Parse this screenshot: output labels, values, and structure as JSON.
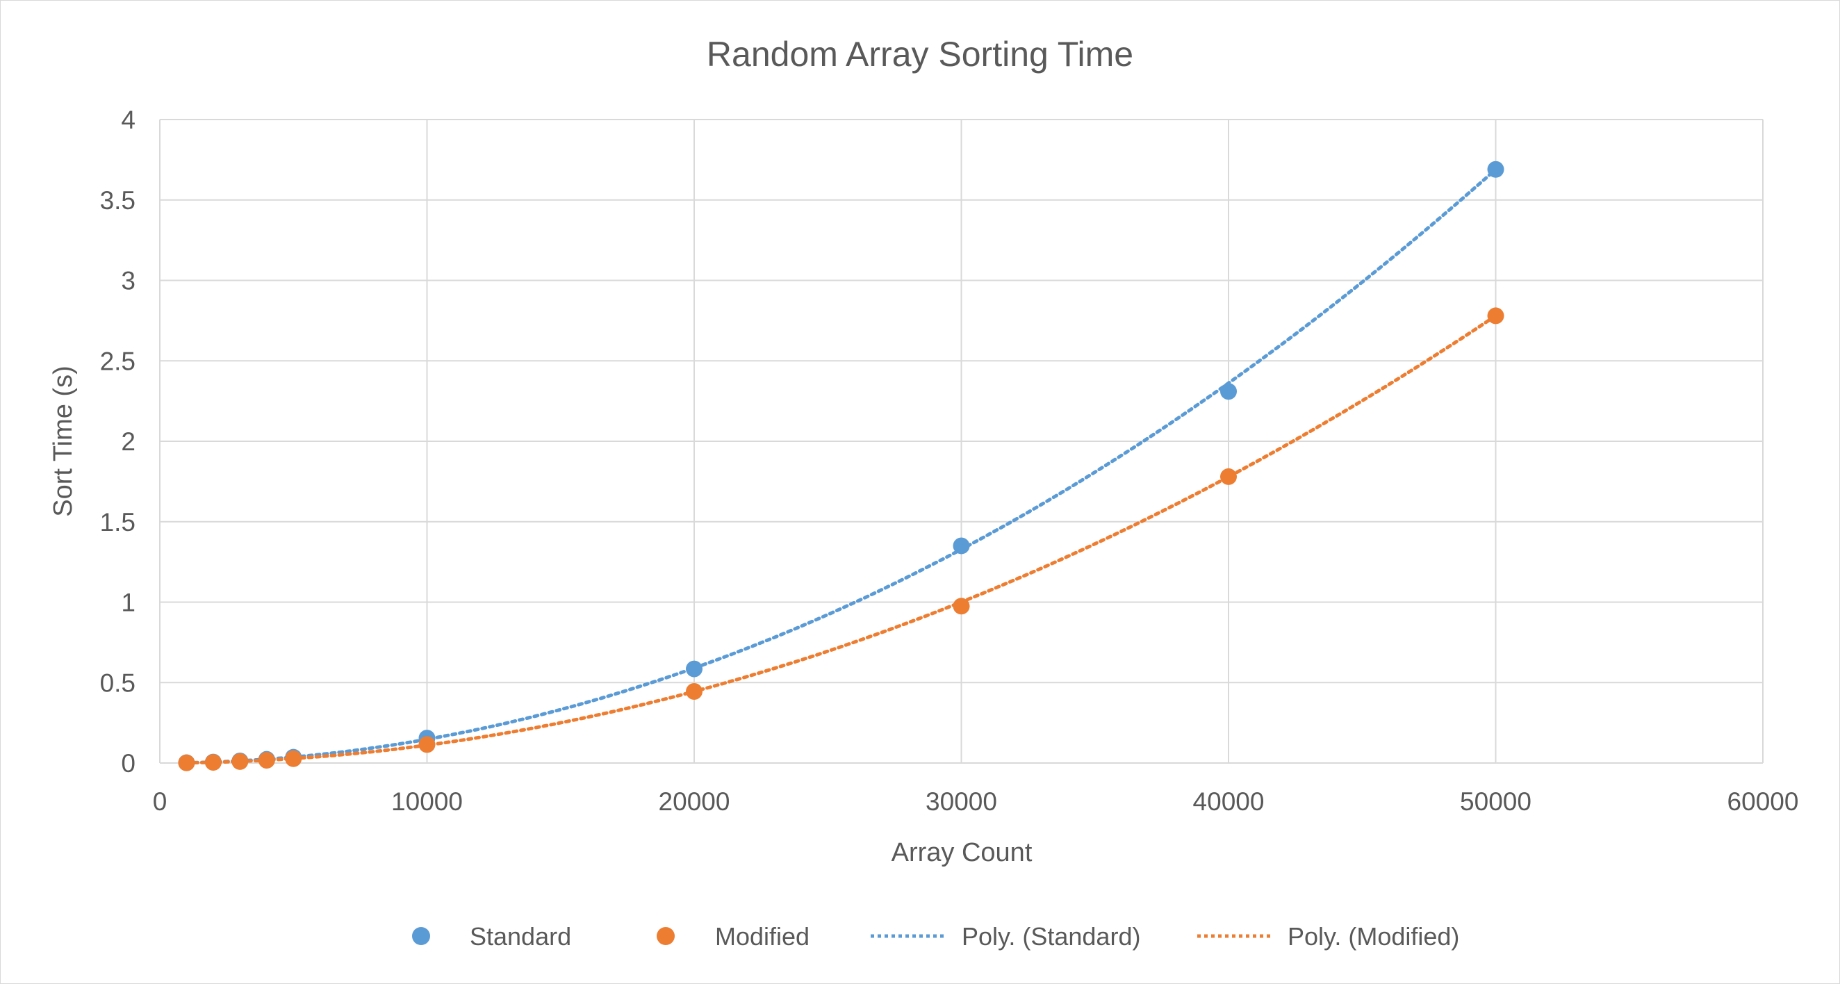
{
  "chart_data": {
    "type": "scatter",
    "title": "Random Array Sorting Time",
    "xlabel": "Array Count",
    "ylabel": "Sort Time (s)",
    "xlim": [
      0,
      60000
    ],
    "ylim": [
      0,
      4
    ],
    "x_ticks": [
      0,
      10000,
      20000,
      30000,
      40000,
      50000,
      60000
    ],
    "y_ticks": [
      0,
      0.5,
      1,
      1.5,
      2,
      2.5,
      3,
      3.5,
      4
    ],
    "grid": true,
    "legend_position": "bottom",
    "series": [
      {
        "name": "Standard",
        "color": "#5b9bd5",
        "points": [
          [
            1000,
            0.002
          ],
          [
            2000,
            0.006
          ],
          [
            3000,
            0.013
          ],
          [
            4000,
            0.023
          ],
          [
            5000,
            0.036
          ],
          [
            10000,
            0.155
          ],
          [
            20000,
            0.585
          ],
          [
            30000,
            1.35
          ],
          [
            40000,
            2.31
          ],
          [
            50000,
            3.69
          ]
        ]
      },
      {
        "name": "Modified",
        "color": "#ed7d31",
        "points": [
          [
            1000,
            0.001
          ],
          [
            2000,
            0.004
          ],
          [
            3000,
            0.009
          ],
          [
            4000,
            0.017
          ],
          [
            5000,
            0.027
          ],
          [
            10000,
            0.115
          ],
          [
            20000,
            0.445
          ],
          [
            30000,
            0.975
          ],
          [
            40000,
            1.78
          ],
          [
            50000,
            2.78
          ]
        ]
      }
    ],
    "trendlines": [
      {
        "name": "Poly. (Standard)",
        "color": "#5b9bd5",
        "coeffs": [
          0.0,
          0.0,
          1.476e-09
        ],
        "x_range": [
          1000,
          50000
        ]
      },
      {
        "name": "Poly. (Modified)",
        "color": "#ed7d31",
        "coeffs": [
          0.0,
          0.0,
          1.112e-09
        ],
        "x_range": [
          1000,
          50000
        ]
      }
    ]
  }
}
